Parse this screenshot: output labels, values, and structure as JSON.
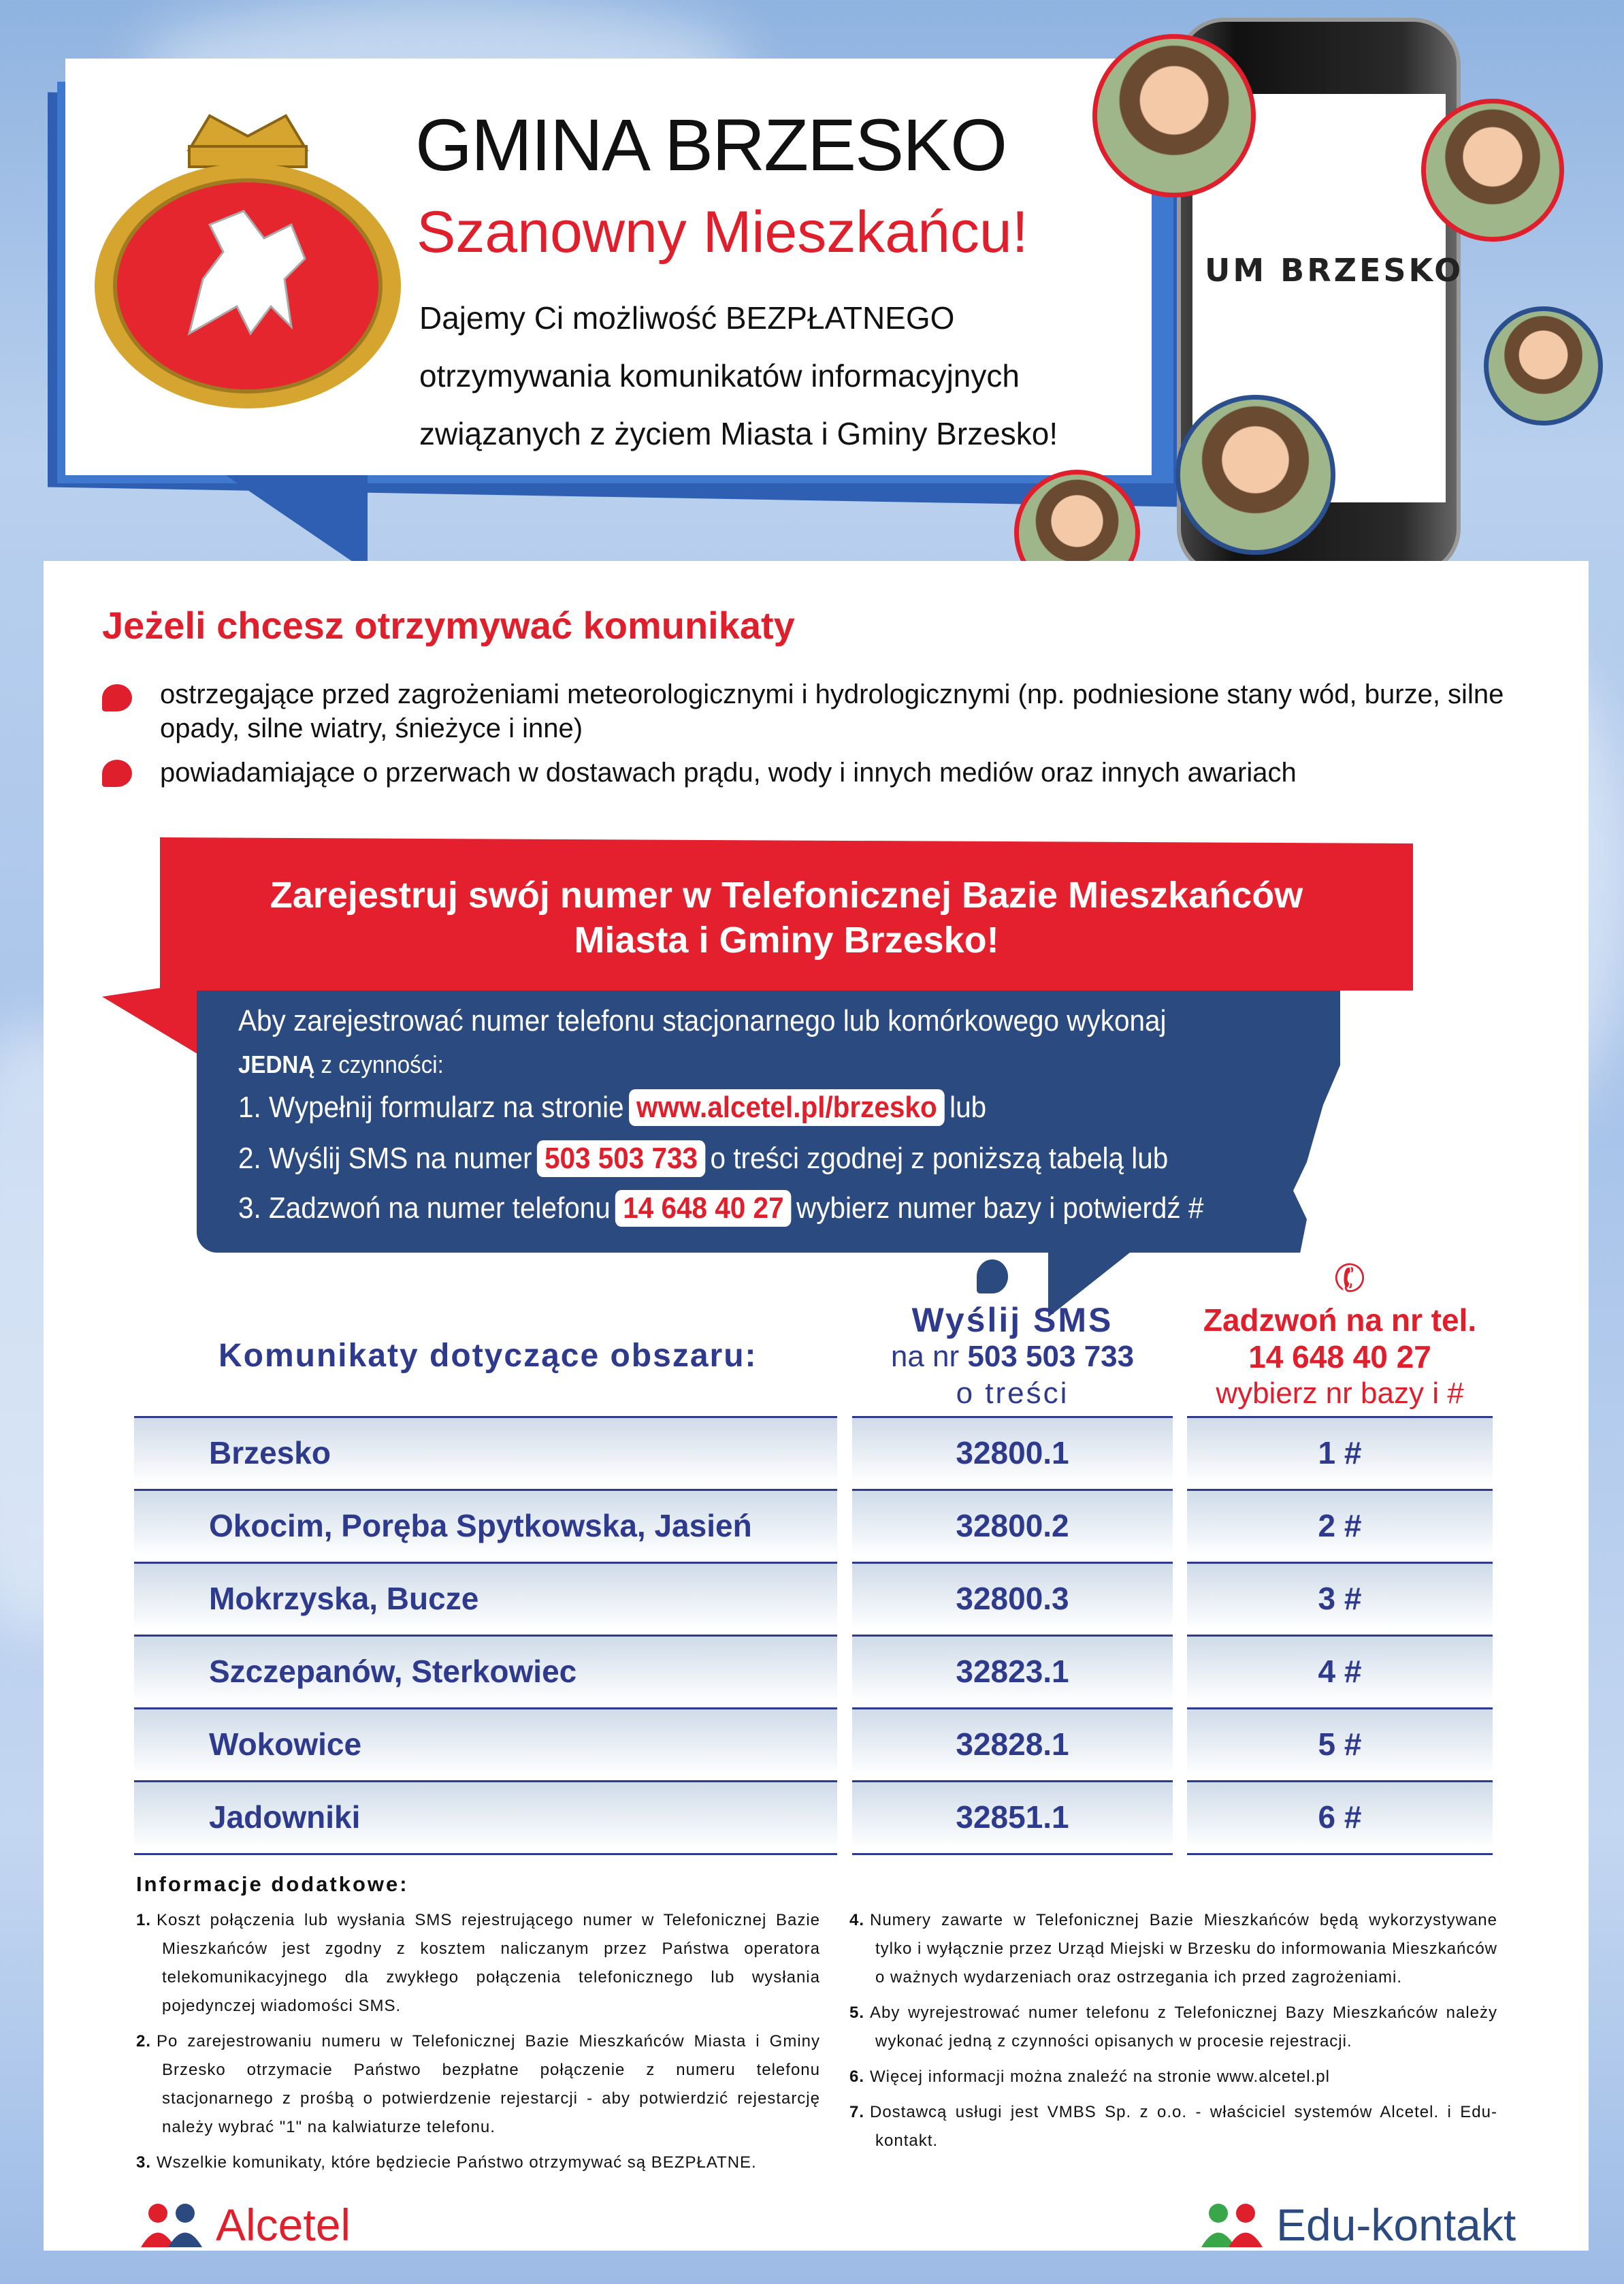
{
  "header": {
    "title": "GMINA BRZESKO",
    "greeting": "Szanowny Mieszkańcu!",
    "intro_lines": [
      "Dajemy Ci możliwość BEZPŁATNEGO",
      "otrzymywania komunikatów informacyjnych",
      "związanych z życiem Miasta i Gminy Brzesko!"
    ],
    "phone_screen_text": "UM BRZESKO",
    "coat_of_arms": "coat-of-arms"
  },
  "alerts": {
    "heading": "Jeżeli chcesz otrzymywać komunikaty",
    "items": [
      "ostrzegające przed zagrożeniami meteorologicznymi i hydrologicznymi (np. podniesione stany wód, burze, silne opady, silne wiatry, śnieżyce i inne)",
      "powiadamiające o przerwach w dostawach prądu, wody i innych mediów oraz innych awariach"
    ]
  },
  "register": {
    "banner_line1": "Zarejestruj swój numer w Telefonicznej Bazie Mieszkańców",
    "banner_line2": "Miasta i Gminy Brzesko!",
    "intro": "Aby zarejestrować numer telefonu stacjonarnego lub komórkowego wykonaj",
    "intro_bold": "JEDNĄ",
    "intro_rest": "z czynności:",
    "step1": "1. Wypełnij formularz na stronie",
    "step1_link": "www.alcetel.pl/brzesko",
    "step1_end": "lub",
    "step2": "2. Wyślij SMS na numer",
    "step2_number": "503 503 733",
    "step2_end": "o treści zgodnej z poniższą tabelą  lub",
    "step3": "3. Zadzwoń na  numer telefonu",
    "step3_number": "14 648 40 27",
    "step3_end": "wybierz numer bazy i potwierdź #"
  },
  "table": {
    "col1_header": "Komunikaty dotyczące obszaru:",
    "sms_header": {
      "title": "Wyślij SMS",
      "prefix": "na nr",
      "number": "503 503 733",
      "suffix": "o treści"
    },
    "call_header": {
      "title": "Zadzwoń na nr tel.",
      "number": "14 648 40 27",
      "suffix": "wybierz nr bazy i #"
    },
    "rows": [
      {
        "area": "Brzesko",
        "sms": "32800.1",
        "call": "1 #"
      },
      {
        "area": "Okocim, Poręba Spytkowska, Jasień",
        "sms": "32800.2",
        "call": "2 #"
      },
      {
        "area": "Mokrzyska, Bucze",
        "sms": "32800.3",
        "call": "3 #"
      },
      {
        "area": "Szczepanów, Sterkowiec",
        "sms": "32823.1",
        "call": "4 #"
      },
      {
        "area": "Wokowice",
        "sms": "32828.1",
        "call": "5 #"
      },
      {
        "area": "Jadowniki",
        "sms": "32851.1",
        "call": "6 #"
      }
    ]
  },
  "info": {
    "heading": "Informacje dodatkowe:",
    "items": [
      {
        "n": "1.",
        "t": "Koszt połączenia lub wysłania SMS rejestrującego numer w Telefonicznej Bazie Mieszkańców jest zgodny z kosztem naliczanym przez Państwa operatora telekomunikacyjnego dla zwykłego połączenia telefonicznego lub wysłania pojedynczej wiadomości SMS."
      },
      {
        "n": "2.",
        "t": "Po zarejestrowaniu numeru w Telefonicznej Bazie Mieszkańców Miasta i Gminy Brzesko otrzymacie Państwo bezpłatne połączenie z numeru telefonu stacjonarnego z prośbą o potwierdzenie rejestarcji - aby potwierdzić rejestarcję należy wybrać \"1\" na kalwiaturze telefonu."
      },
      {
        "n": "3.",
        "t": "Wszelkie komunikaty, które będziecie Państwo otrzymywać są BEZPŁATNE."
      },
      {
        "n": "4.",
        "t": "Numery zawarte w Telefonicznej Bazie Mieszkańców będą wykorzystywane tylko i wyłącznie przez Urząd Miejski w Brzesku do informowania Mieszkańców o ważnych wydarzeniach oraz ostrzegania ich przed zagrożeniami."
      },
      {
        "n": "5.",
        "t": "Aby wyrejestrować numer telefonu z Telefonicznej Bazy Mieszkańców należy wykonać jedną z czynności opisanych w procesie rejestracji."
      },
      {
        "n": "6.",
        "t": "Więcej informacji można znaleźć na stronie www.alcetel.pl"
      },
      {
        "n": "7.",
        "t": "Dostawcą usługi jest VMBS Sp. z o.o. - właściciel systemów Alcetel. i Edu-kontakt."
      }
    ]
  },
  "footer": {
    "logo_left": "Alcetel",
    "logo_right": "Edu-kontakt"
  },
  "colors": {
    "red": "#e01f2d",
    "navy": "#2b4a80",
    "table_text": "#2e3a8c"
  }
}
